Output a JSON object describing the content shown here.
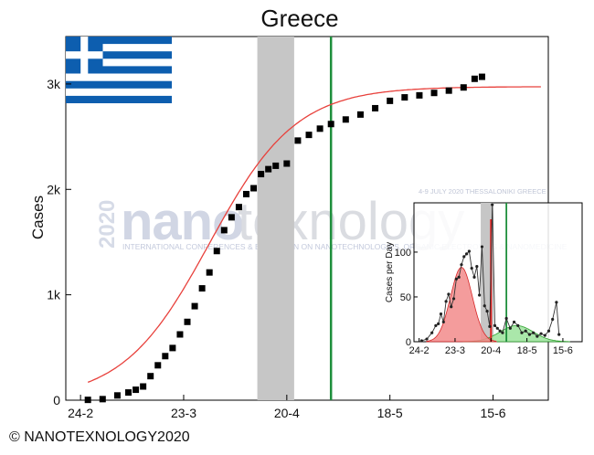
{
  "chart_data": [
    {
      "type": "scatter",
      "title": "Greece",
      "ylabel": "Cases",
      "xlabel": "",
      "x_tick_labels": [
        "24-2",
        "23-3",
        "20-4",
        "18-5",
        "15-6"
      ],
      "y_tick_labels": [
        "0",
        "1k",
        "2k",
        "3k"
      ],
      "xlim": [
        "2020-02-20",
        "2020-06-30"
      ],
      "ylim": [
        0,
        3450
      ],
      "shaded_band": [
        "2020-04-12",
        "2020-04-22"
      ],
      "vertical_line": "2020-05-02",
      "fit_curve": "logistic",
      "colors": {
        "points": "#000000",
        "fit": "#e8413c",
        "band": "#c6c6c6",
        "vline": "#1e8f3c"
      },
      "series": [
        {
          "x": [
            "2020-02-26",
            "2020-03-01",
            "2020-03-05",
            "2020-03-08",
            "2020-03-10",
            "2020-03-12",
            "2020-03-14",
            "2020-03-16",
            "2020-03-18",
            "2020-03-20",
            "2020-03-22",
            "2020-03-24",
            "2020-03-26",
            "2020-03-28",
            "2020-03-30",
            "2020-04-01",
            "2020-04-03",
            "2020-04-05",
            "2020-04-07",
            "2020-04-09",
            "2020-04-11",
            "2020-04-13",
            "2020-04-15",
            "2020-04-17",
            "2020-04-20",
            "2020-04-23",
            "2020-04-26",
            "2020-04-29",
            "2020-05-02",
            "2020-05-06",
            "2020-05-10",
            "2020-05-14",
            "2020-05-18",
            "2020-05-22",
            "2020-05-26",
            "2020-05-30",
            "2020-06-03",
            "2020-06-07",
            "2020-06-10",
            "2020-06-12"
          ],
          "y": [
            3,
            10,
            45,
            73,
            99,
            130,
            228,
            331,
            418,
            495,
            624,
            743,
            892,
            1061,
            1212,
            1415,
            1613,
            1735,
            1832,
            1955,
            2011,
            2145,
            2192,
            2224,
            2245,
            2463,
            2517,
            2576,
            2620,
            2663,
            2710,
            2770,
            2840,
            2873,
            2892,
            2915,
            2937,
            2967,
            3049,
            3068
          ]
        }
      ]
    },
    {
      "type": "line",
      "title": "",
      "ylabel": "Cases per Day",
      "xlabel": "",
      "x_tick_labels": [
        "24-2",
        "23-3",
        "20-4",
        "18-5",
        "15-6"
      ],
      "y_tick_labels": [
        "0",
        "50",
        "100"
      ],
      "xlim": [
        "2020-02-20",
        "2020-06-30"
      ],
      "ylim": [
        0,
        155
      ],
      "shaded_band": [
        "2020-04-12",
        "2020-04-22"
      ],
      "red_line": "2020-04-20",
      "vertical_line": "2020-05-02",
      "colors": {
        "first_wave": "#f28b8b",
        "second_wave": "#9be39b",
        "overlap": "#d4c25a",
        "line": "#333333"
      },
      "series": [
        {
          "x": [
            "2020-02-26",
            "2020-03-01",
            "2020-03-05",
            "2020-03-08",
            "2020-03-10",
            "2020-03-12",
            "2020-03-14",
            "2020-03-16",
            "2020-03-18",
            "2020-03-20",
            "2020-03-22",
            "2020-03-24",
            "2020-03-26",
            "2020-03-28",
            "2020-03-30",
            "2020-04-01",
            "2020-04-03",
            "2020-04-05",
            "2020-04-07",
            "2020-04-09",
            "2020-04-11",
            "2020-04-13",
            "2020-04-15",
            "2020-04-17",
            "2020-04-19",
            "2020-04-21",
            "2020-04-23",
            "2020-04-25",
            "2020-04-27",
            "2020-04-29",
            "2020-05-02",
            "2020-05-05",
            "2020-05-08",
            "2020-05-11",
            "2020-05-14",
            "2020-05-17",
            "2020-05-20",
            "2020-05-23",
            "2020-05-26",
            "2020-05-29",
            "2020-06-01",
            "2020-06-04",
            "2020-06-07",
            "2020-06-10",
            "2020-06-12"
          ],
          "y": [
            1,
            3,
            10,
            18,
            20,
            31,
            22,
            45,
            53,
            39,
            48,
            70,
            72,
            86,
            95,
            98,
            101,
            82,
            72,
            84,
            52,
            106,
            40,
            34,
            17,
            153,
            18,
            15,
            12,
            10,
            26,
            15,
            22,
            18,
            10,
            12,
            8,
            10,
            6,
            9,
            7,
            12,
            25,
            44,
            8
          ]
        }
      ]
    }
  ],
  "watermark": {
    "brand_left": "nano",
    "brand_right": "texnology",
    "year": "2020",
    "date_line": "4-9 JULY 2020 THESSALONIKI GREECE",
    "subtitle": "INTERNATIONAL CONFERENCES & EXHIBITION ON NANOTECHNOLOGIES, ORGANIC ELECTRONICS & NANOMEDICINE"
  },
  "copyright": "© NANOTEXNOLOGY2020"
}
